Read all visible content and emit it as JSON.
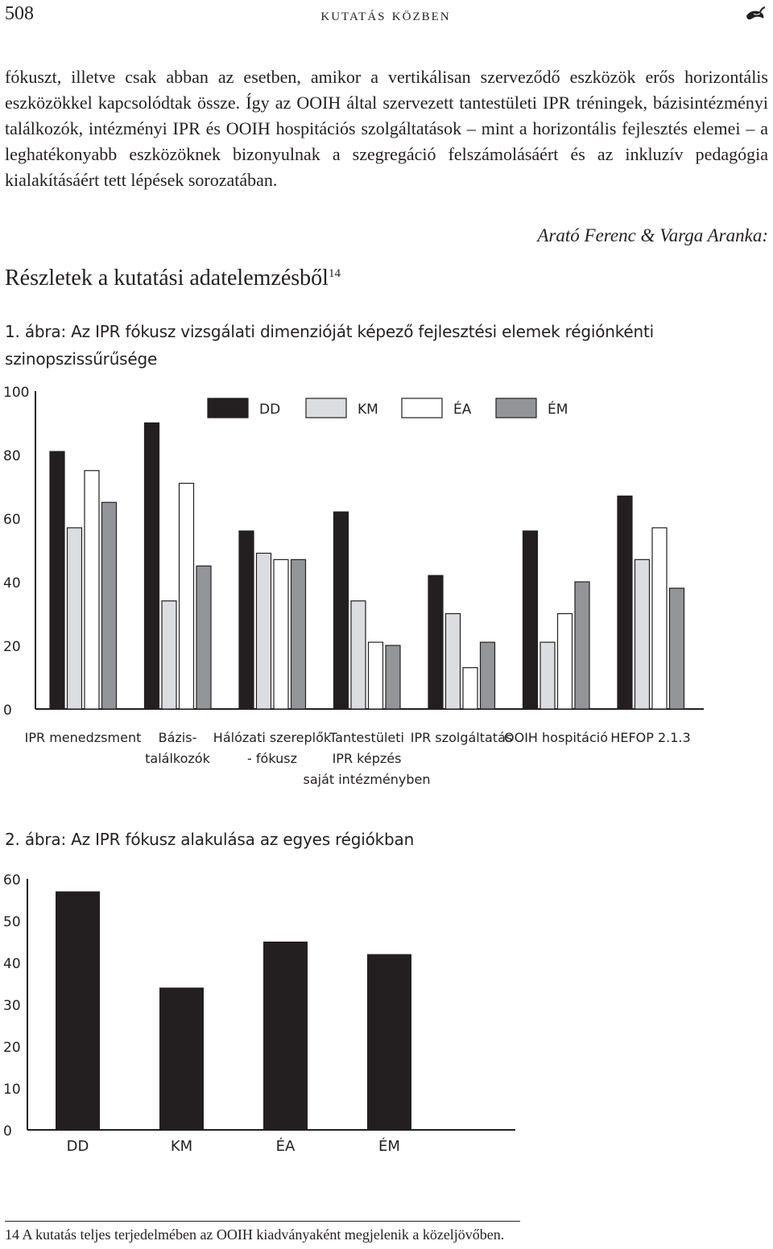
{
  "header": {
    "page_number": "508",
    "running_title": "kutatás közben",
    "ornament_icon": "pepper-icon"
  },
  "body": {
    "paragraph": "fókuszt, illetve csak abban az esetben, amikor a vertikálisan szerveződő eszközök erős horizontális eszközökkel kapcsolódtak össze. Így az OOIH által szervezett tantestületi IPR tréningek, bázisintézményi találkozók, intézményi IPR és OOIH hospitációs szolgáltatások – mint a horizontális fejlesztés elemei – a leghatékonyabb eszközöknek bizonyulnak a szegregáció felszámolásáért és az inkluzív pedagógia kialakításáért tett lépések sorozatában."
  },
  "authors": "Arató Ferenc & Varga Aranka:",
  "section": {
    "title": "Részletek a kutatási adatelemzésből",
    "footnote_ref": "14"
  },
  "figure1": {
    "caption": "1. ábra: Az IPR fókusz vizsgálati dimenzióját képező fejlesztési elemek régiónkénti szinopszissűrűsége"
  },
  "figure2": {
    "caption": "2. ábra: Az IPR fókusz alakulása az egyes régiókban"
  },
  "footnote": {
    "number": "14",
    "text": "A kutatás teljes terjedelmében az OOIH kiadványaként megjelenik a közeljövőben."
  },
  "chart_data": [
    {
      "type": "bar",
      "title": "1. ábra",
      "categories": [
        [
          "IPR menedzsment"
        ],
        [
          "Bázis-",
          "találkozók"
        ],
        [
          "Hálózati szereplők",
          "- fókusz"
        ],
        [
          "Tantestületi",
          "IPR képzés",
          "saját intézményben"
        ],
        [
          "IPR szolgáltatás"
        ],
        [
          "OOIH hospitáció"
        ],
        [
          "HEFOP 2.1.3"
        ]
      ],
      "series": [
        {
          "name": "DD",
          "color": "#231f20",
          "values": [
            81,
            90,
            56,
            62,
            42,
            56,
            67
          ]
        },
        {
          "name": "KM",
          "color": "#dcdde0",
          "values": [
            57,
            34,
            49,
            34,
            30,
            21,
            47
          ]
        },
        {
          "name": "ÉA",
          "color": "#ffffff",
          "values": [
            75,
            71,
            47,
            21,
            13,
            30,
            57
          ]
        },
        {
          "name": "ÉM",
          "color": "#939598",
          "values": [
            65,
            45,
            47,
            20,
            21,
            40,
            38
          ]
        }
      ],
      "ylim": [
        0,
        100
      ],
      "yticks": [
        "0",
        "20",
        "40",
        "60",
        "80",
        "100"
      ],
      "legend": "top"
    },
    {
      "type": "bar",
      "title": "2. ábra",
      "categories": [
        "DD",
        "KM",
        "ÉA",
        "ÉM"
      ],
      "values": [
        57,
        34,
        45,
        42
      ],
      "color": "#231f20",
      "ylim": [
        0,
        60
      ],
      "yticks": [
        "0",
        "10",
        "20",
        "30",
        "40",
        "50",
        "60"
      ]
    }
  ]
}
